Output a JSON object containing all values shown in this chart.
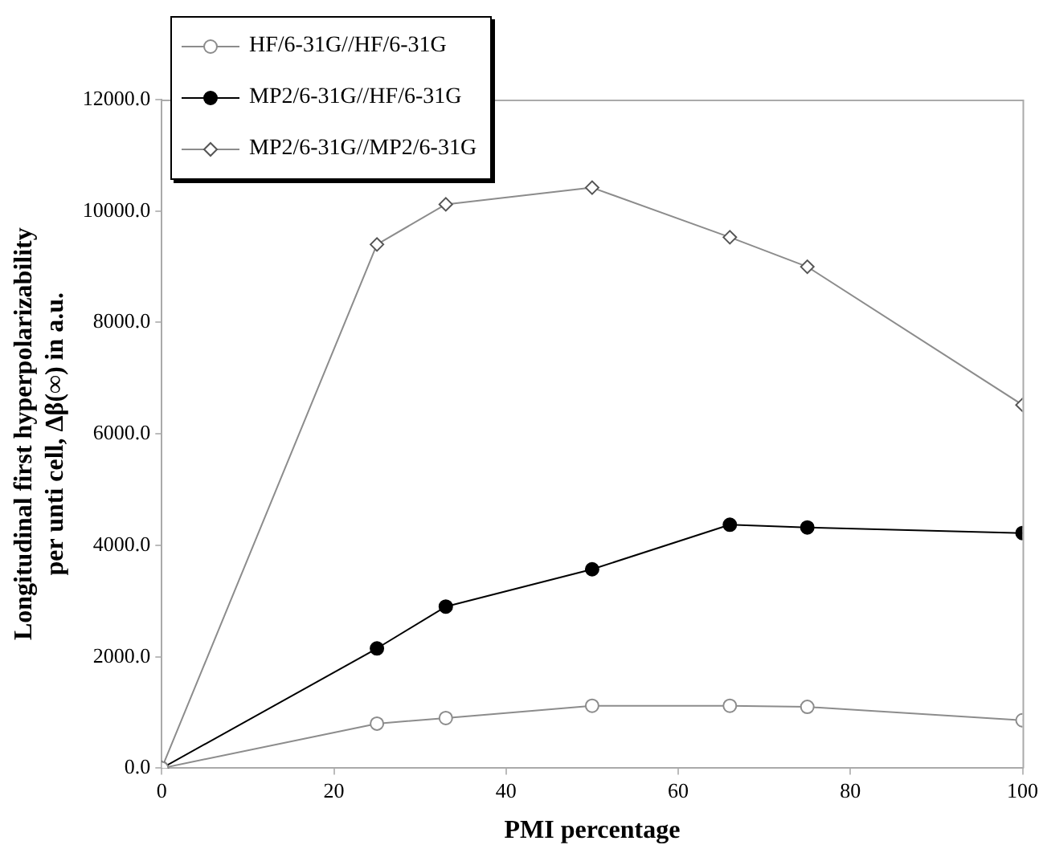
{
  "chart_data": {
    "type": "line",
    "xlabel": "PMI percentage",
    "ylabel": "Longitudinal first hyperpolarizability\nper unti cell, Δβ(∞) in a.u.",
    "x": [
      0,
      25,
      33,
      50,
      66,
      75,
      100
    ],
    "series": [
      {
        "name": "HF/6-31G//HF/6-31G",
        "color": "#8c8c8c",
        "marker": "circle",
        "values": [
          0,
          800,
          900,
          1120,
          1120,
          1100,
          860
        ]
      },
      {
        "name": "MP2/6-31G//HF/6-31G",
        "color": "#000000",
        "marker": "circle",
        "values": [
          0,
          2150,
          2900,
          3570,
          4370,
          4320,
          4220
        ]
      },
      {
        "name": "MP2/6-31G//MP2/6-31G",
        "color": "#8c8c8c",
        "marker": "diamond",
        "values": [
          0,
          9400,
          10120,
          10420,
          9530,
          9000,
          6520
        ]
      }
    ],
    "xlim": [
      0,
      100
    ],
    "xticks": [
      0,
      20,
      40,
      60,
      80,
      100
    ],
    "ylim": [
      0,
      12000
    ],
    "yticks": [
      {
        "value": 0,
        "label": "0.0"
      },
      {
        "value": 2000,
        "label": "2000.0"
      },
      {
        "value": 4000,
        "label": "4000.0"
      },
      {
        "value": 6000,
        "label": "6000.0"
      },
      {
        "value": 8000,
        "label": "8000.0"
      },
      {
        "value": 10000,
        "label": "10000.0"
      },
      {
        "value": 12000,
        "label": "12000.0"
      }
    ],
    "grid": false,
    "legend": "top left",
    "line_style": "solid"
  }
}
